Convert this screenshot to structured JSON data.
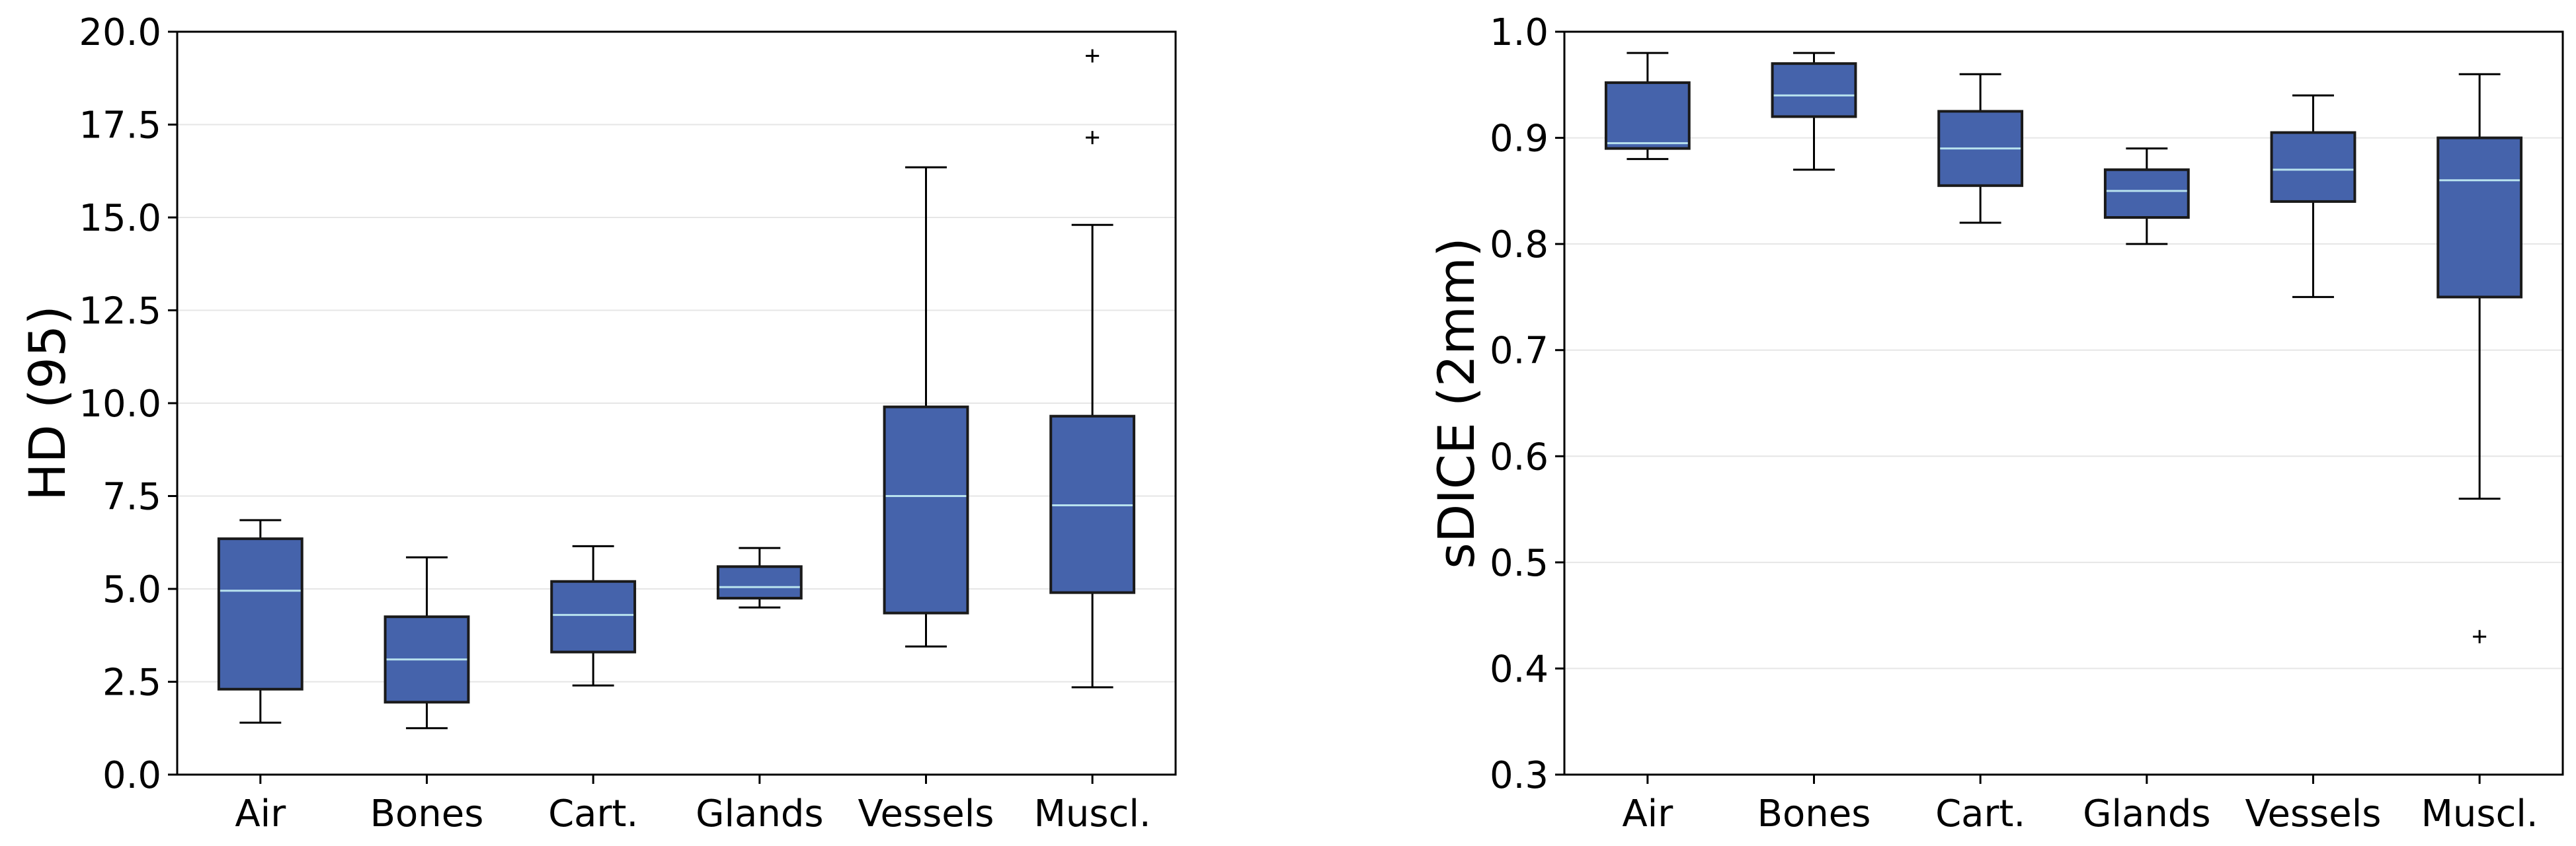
{
  "colors": {
    "box_fill": "#4563ab",
    "box_edge": "#1a1a1a",
    "median": "#b8e2ee",
    "grid": "#e6e6e6",
    "whisker": "#000000",
    "axes": "#000000"
  },
  "chart_data": [
    {
      "type": "box",
      "ylabel": "HD (95)",
      "xlabel": "",
      "ylim": [
        0,
        20
      ],
      "yticks": [
        "0.0",
        "2.5",
        "5.0",
        "7.5",
        "10.0",
        "12.5",
        "15.0",
        "17.5",
        "20.0"
      ],
      "ytick_values": [
        0,
        2.5,
        5,
        7.5,
        10,
        12.5,
        15,
        17.5,
        20
      ],
      "grid": "horizontal",
      "categories": [
        "Air",
        "Bones",
        "Cart.",
        "Glands",
        "Vessels",
        "Muscl."
      ],
      "boxes": [
        {
          "whislo": 1.4,
          "q1": 2.3,
          "med": 4.95,
          "q3": 6.35,
          "whishi": 6.85,
          "fliers": []
        },
        {
          "whislo": 1.25,
          "q1": 1.95,
          "med": 3.1,
          "q3": 4.25,
          "whishi": 5.85,
          "fliers": []
        },
        {
          "whislo": 2.4,
          "q1": 3.3,
          "med": 4.3,
          "q3": 5.2,
          "whishi": 6.15,
          "fliers": []
        },
        {
          "whislo": 4.5,
          "q1": 4.75,
          "med": 5.05,
          "q3": 5.6,
          "whishi": 6.1,
          "fliers": []
        },
        {
          "whislo": 3.45,
          "q1": 4.35,
          "med": 7.5,
          "q3": 9.9,
          "whishi": 16.35,
          "fliers": []
        },
        {
          "whislo": 2.35,
          "q1": 4.9,
          "med": 7.25,
          "q3": 9.65,
          "whishi": 14.8,
          "fliers": [
            17.15,
            19.35
          ]
        }
      ]
    },
    {
      "type": "box",
      "ylabel": "sDICE (2mm)",
      "xlabel": "",
      "ylim": [
        0.3,
        1.0
      ],
      "yticks": [
        "0.3",
        "0.4",
        "0.5",
        "0.6",
        "0.7",
        "0.8",
        "0.9",
        "1.0"
      ],
      "ytick_values": [
        0.3,
        0.4,
        0.5,
        0.6,
        0.7,
        0.8,
        0.9,
        1.0
      ],
      "grid": "horizontal",
      "categories": [
        "Air",
        "Bones",
        "Cart.",
        "Glands",
        "Vessels",
        "Muscl."
      ],
      "boxes": [
        {
          "whislo": 0.88,
          "q1": 0.89,
          "med": 0.895,
          "q3": 0.952,
          "whishi": 0.98,
          "fliers": []
        },
        {
          "whislo": 0.87,
          "q1": 0.92,
          "med": 0.94,
          "q3": 0.97,
          "whishi": 0.98,
          "fliers": []
        },
        {
          "whislo": 0.82,
          "q1": 0.855,
          "med": 0.89,
          "q3": 0.925,
          "whishi": 0.96,
          "fliers": []
        },
        {
          "whislo": 0.8,
          "q1": 0.825,
          "med": 0.85,
          "q3": 0.87,
          "whishi": 0.89,
          "fliers": []
        },
        {
          "whislo": 0.75,
          "q1": 0.84,
          "med": 0.87,
          "q3": 0.905,
          "whishi": 0.94,
          "fliers": []
        },
        {
          "whislo": 0.56,
          "q1": 0.75,
          "med": 0.86,
          "q3": 0.9,
          "whishi": 0.96,
          "fliers": [
            0.43
          ]
        }
      ]
    }
  ]
}
